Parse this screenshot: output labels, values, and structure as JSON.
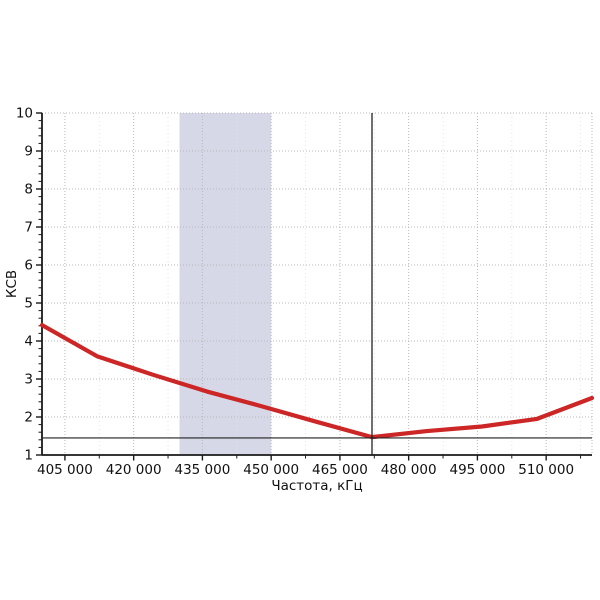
{
  "chart_data": {
    "type": "line",
    "title": "",
    "xlabel": "Частота, кГц",
    "ylabel": "КСВ",
    "xlim": [
      400000,
      520000
    ],
    "ylim": [
      1,
      10
    ],
    "x_ticks": [
      {
        "value": 405000,
        "label": "405 000"
      },
      {
        "value": 420000,
        "label": "420 000"
      },
      {
        "value": 435000,
        "label": "435 000"
      },
      {
        "value": 450000,
        "label": "450 000"
      },
      {
        "value": 465000,
        "label": "465 000"
      },
      {
        "value": 480000,
        "label": "480 000"
      },
      {
        "value": 495000,
        "label": "495 000"
      },
      {
        "value": 510000,
        "label": "510 000"
      }
    ],
    "x_minor_tick_step": 7500,
    "y_ticks": [
      {
        "value": 1,
        "label": "1"
      },
      {
        "value": 2,
        "label": "2"
      },
      {
        "value": 3,
        "label": "3"
      },
      {
        "value": 4,
        "label": "4"
      },
      {
        "value": 5,
        "label": "5"
      },
      {
        "value": 6,
        "label": "6"
      },
      {
        "value": 7,
        "label": "7"
      },
      {
        "value": 8,
        "label": "8"
      },
      {
        "value": 9,
        "label": "9"
      },
      {
        "value": 10,
        "label": "10"
      }
    ],
    "y_minor_tick_step": 0.2,
    "grid": {
      "major_on": true,
      "minor_vertical_on": true,
      "style": "dotted"
    },
    "legend_position": "none",
    "highlight_band": {
      "x_from": 430000,
      "x_to": 450000,
      "color": "#d6d8e7"
    },
    "markers": {
      "vline_x": 472000,
      "hline_y": 1.45,
      "meaning": "cursor cross at minimum VSWR point"
    },
    "min_point": {
      "x": 472000,
      "y": 1.45
    },
    "series": [
      {
        "name": "КСВ",
        "color": "#cc2626",
        "points": [
          [
            400000,
            4.42
          ],
          [
            412000,
            3.6
          ],
          [
            424000,
            3.12
          ],
          [
            436000,
            2.67
          ],
          [
            448000,
            2.28
          ],
          [
            460000,
            1.87
          ],
          [
            472000,
            1.47
          ],
          [
            484000,
            1.63
          ],
          [
            496000,
            1.75
          ],
          [
            508000,
            1.95
          ],
          [
            520000,
            2.5
          ]
        ]
      }
    ],
    "colors": {
      "line": "#cc2626",
      "band": "#d6d8e7",
      "axis": "#1a1a1a",
      "grid_major": "#b8b8b8",
      "grid_minor": "#e2e2ea",
      "marker_line": "#222222",
      "background": "#ffffff"
    }
  }
}
